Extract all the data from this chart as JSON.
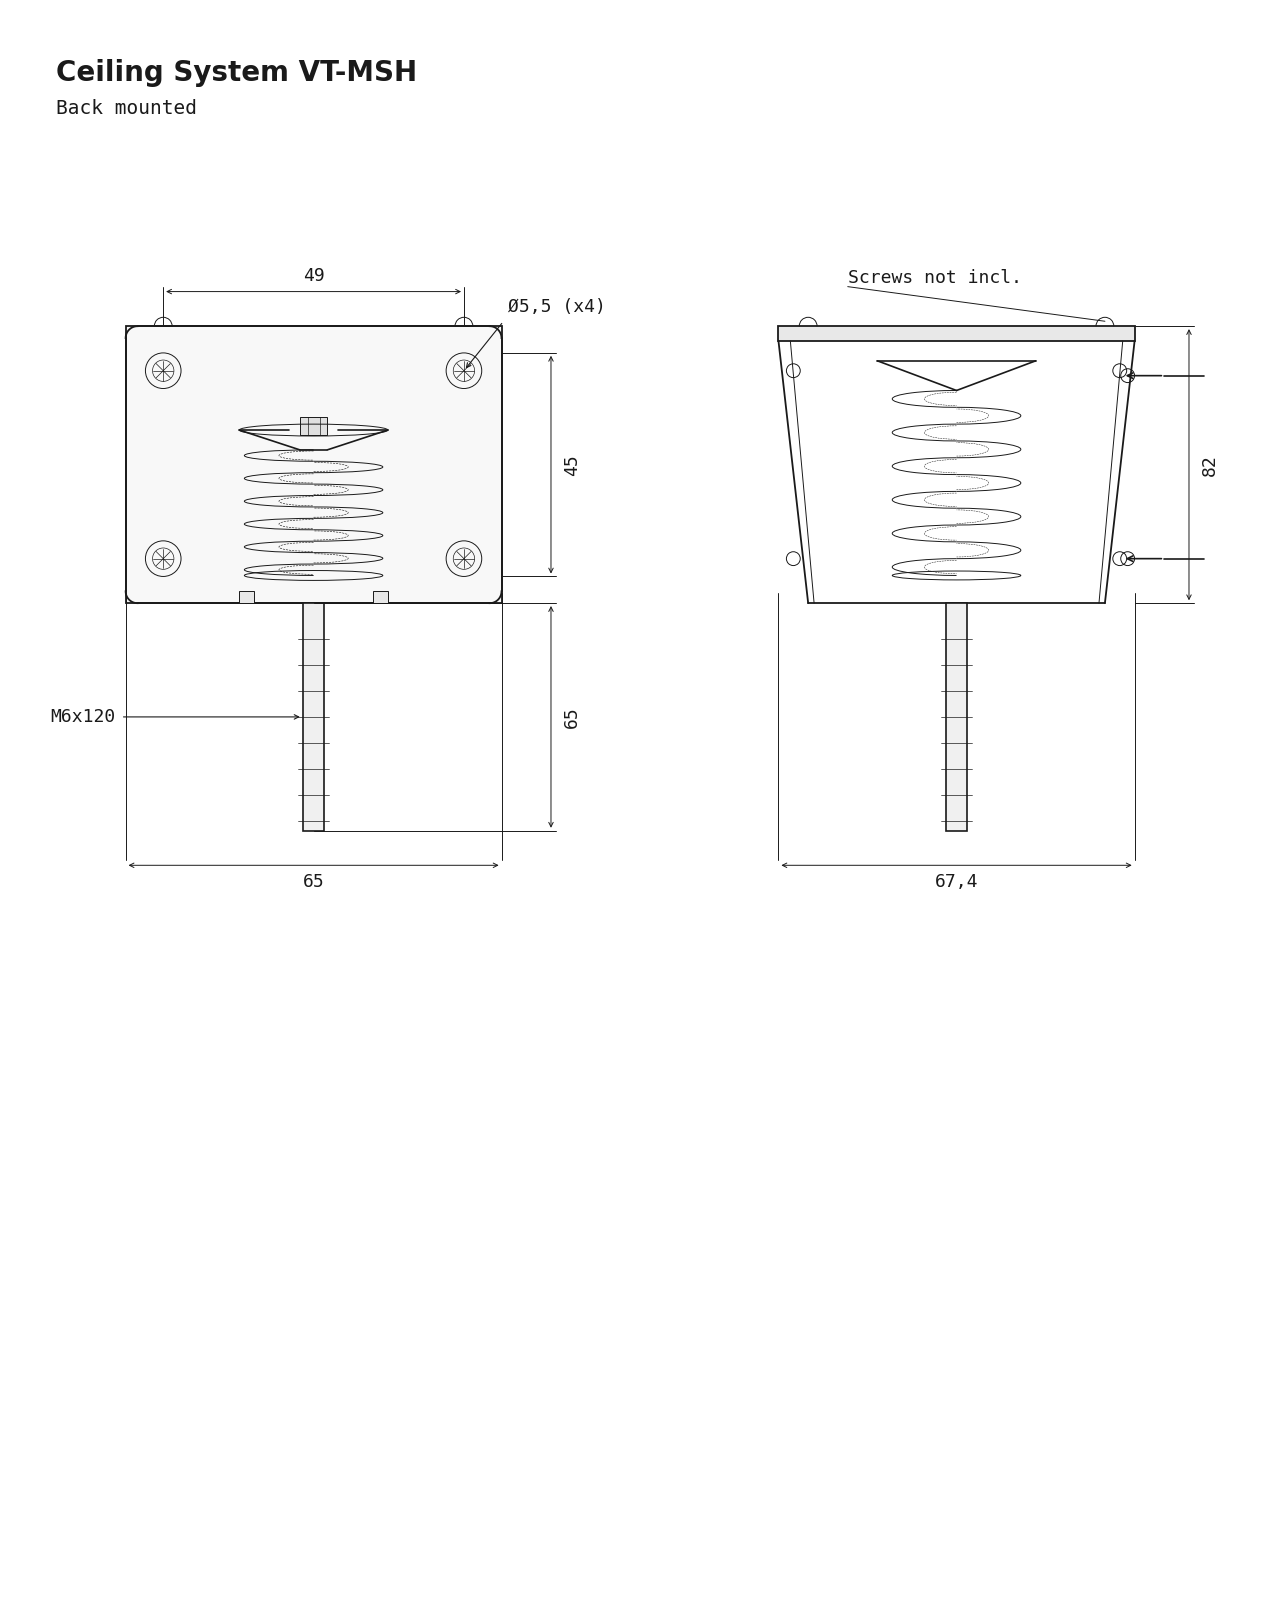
{
  "title": "Ceiling System VT-MSH",
  "subtitle": "Back mounted",
  "bg_color": "#ffffff",
  "line_color": "#1a1a1a",
  "dim_color": "#1a1a1a",
  "font_color": "#1a1a1a",
  "title_fontsize": 20,
  "subtitle_fontsize": 14,
  "label_fontsize": 13,
  "dim_fontsize": 13,
  "annotation_fontsize": 13,
  "dim_49": "49",
  "dim_45": "45",
  "dim_65_rod": "65",
  "dim_65_bottom": "65",
  "dim_82": "82",
  "dim_674": "67,4",
  "dim_d55": "Ø5,5 (x4)",
  "dim_m6": "M6x120",
  "screws_label": "Screws not incl."
}
